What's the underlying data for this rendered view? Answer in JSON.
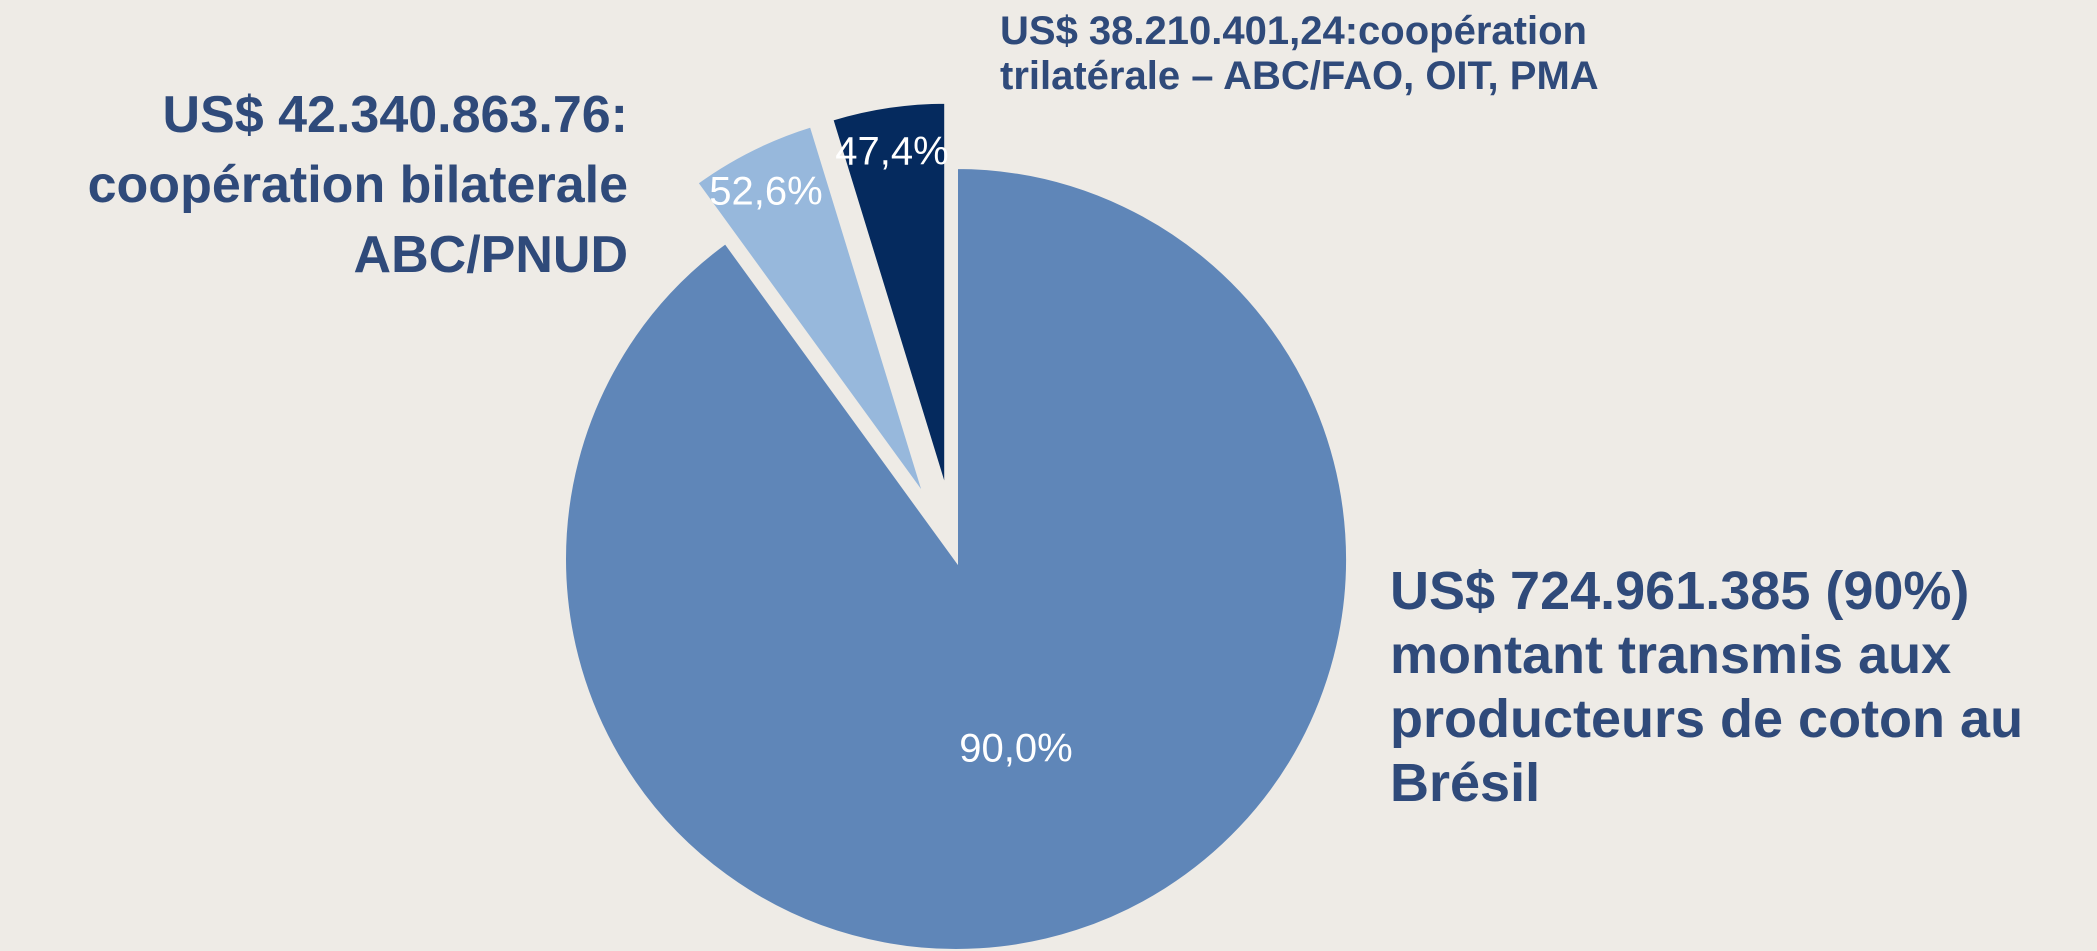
{
  "chart_data": {
    "type": "pie",
    "categories": [
      [
        "US$ 724.961.385 (90%)",
        "montant transmis aux",
        "producteurs de coton au",
        "Brésil"
      ],
      [
        "US$ 42.340.863.76:",
        "coopération bilaterale",
        "ABC/PNUD"
      ],
      [
        "US$ 38.210.401,24:coopération",
        "trilatérale – ABC/FAO, OIT, PMA"
      ]
    ],
    "values": [
      90.0,
      52.6,
      47.4
    ],
    "value_labels": [
      "90,0%",
      "52,6%",
      "47,4%"
    ],
    "colors": [
      "#5f86b8",
      "#97b8dc",
      "#052a5e"
    ]
  }
}
